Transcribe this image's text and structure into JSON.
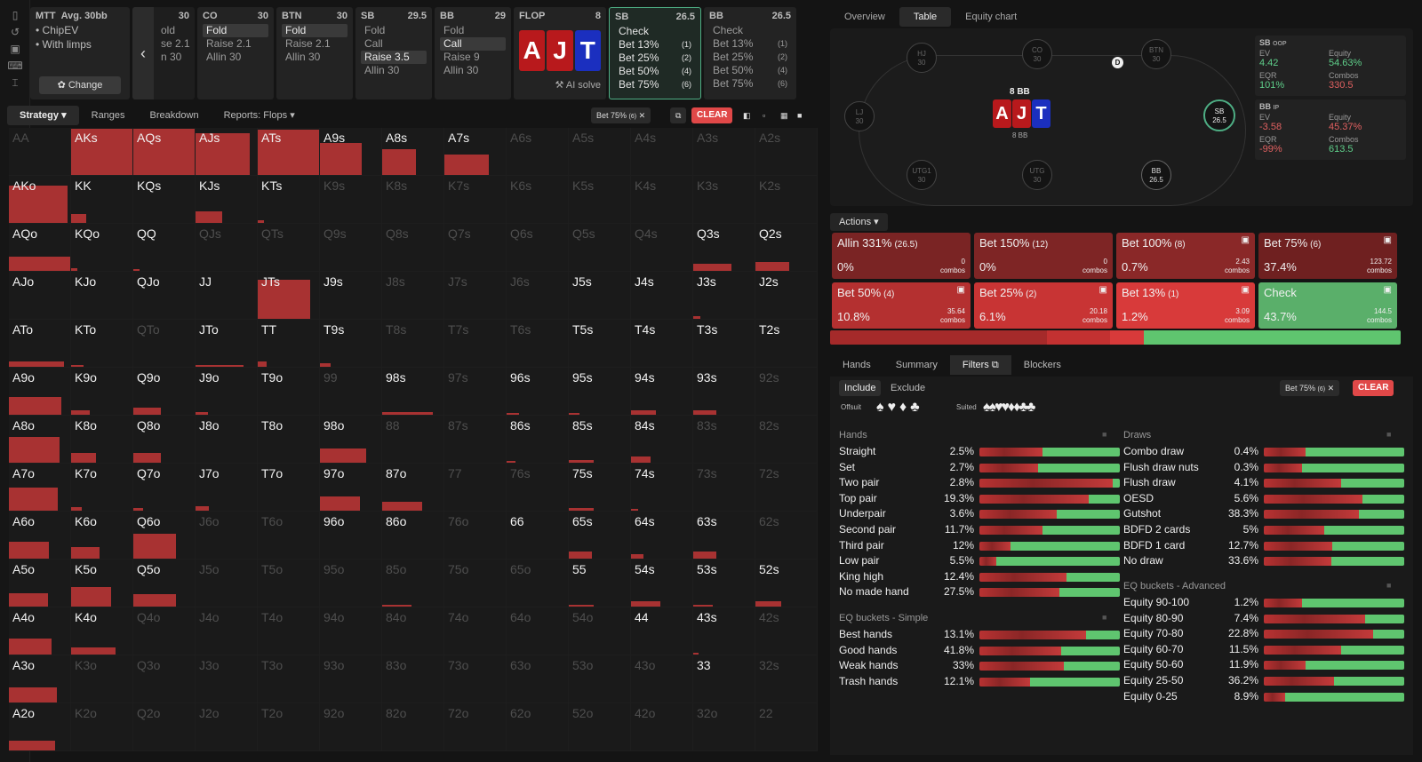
{
  "sidebar": [
    "bookmark-icon",
    "history-icon",
    "save-icon",
    "game-icon",
    "tree-icon"
  ],
  "mtt": {
    "title": "MTT",
    "avg": "Avg. 30bb",
    "opt1": "ChipEV",
    "opt2": "With limps",
    "change": "Change"
  },
  "hist": {
    "hd": "30",
    "ops": [
      "old",
      "se 2.1",
      "n 30"
    ]
  },
  "nodes": [
    {
      "pos": "CO",
      "stack": "30",
      "ops": [
        "Fold",
        "Raise 2.1",
        "Allin 30"
      ],
      "sel": 0
    },
    {
      "pos": "BTN",
      "stack": "30",
      "ops": [
        "Fold",
        "Raise 2.1",
        "Allin 30"
      ],
      "sel": 0
    },
    {
      "pos": "SB",
      "stack": "29.5",
      "ops": [
        "Fold",
        "Call",
        "Raise 3.5",
        "Allin 30"
      ],
      "sel": 2
    },
    {
      "pos": "BB",
      "stack": "29",
      "ops": [
        "Fold",
        "Call",
        "Raise 9",
        "Allin 30"
      ],
      "sel": 1
    }
  ],
  "flop": {
    "label": "FLOP",
    "pot": "8",
    "cards": [
      "A",
      "J",
      "T"
    ],
    "ai": "AI solve"
  },
  "sbnode": {
    "pos": "SB",
    "stack": "26.5",
    "ops": [
      [
        "Check",
        ""
      ],
      [
        "Bet 13%",
        "(1)"
      ],
      [
        "Bet 25%",
        "(2)"
      ],
      [
        "Bet 50%",
        "(4)"
      ],
      [
        "Bet 75%",
        "(6)"
      ]
    ]
  },
  "bbnode": {
    "pos": "BB",
    "stack": "26.5",
    "ops": [
      [
        "Check",
        ""
      ],
      [
        "Bet 13%",
        "(1)"
      ],
      [
        "Bet 25%",
        "(2)"
      ],
      [
        "Bet 50%",
        "(4)"
      ],
      [
        "Bet 75%",
        "(6)"
      ]
    ]
  },
  "toolbar": {
    "strategy": "Strategy",
    "ranges": "Ranges",
    "breakdown": "Breakdown",
    "reports": "Reports: Flops",
    "filter": "Bet 75%",
    "filter_n": "(6)",
    "clear": "CLEAR"
  },
  "grid": {
    "rows": [
      [
        "AA",
        "AKs",
        "AQs",
        "AJs",
        "ATs",
        "A9s",
        "A8s",
        "A7s",
        "A6s",
        "A5s",
        "A4s",
        "A3s",
        "A2s"
      ],
      [
        "AKo",
        "KK",
        "KQs",
        "KJs",
        "KTs",
        "K9s",
        "K8s",
        "K7s",
        "K6s",
        "K5s",
        "K4s",
        "K3s",
        "K2s"
      ],
      [
        "AQo",
        "KQo",
        "QQ",
        "QJs",
        "QTs",
        "Q9s",
        "Q8s",
        "Q7s",
        "Q6s",
        "Q5s",
        "Q4s",
        "Q3s",
        "Q2s"
      ],
      [
        "AJo",
        "KJo",
        "QJo",
        "JJ",
        "JTs",
        "J9s",
        "J8s",
        "J7s",
        "J6s",
        "J5s",
        "J4s",
        "J3s",
        "J2s"
      ],
      [
        "ATo",
        "KTo",
        "QTo",
        "JTo",
        "TT",
        "T9s",
        "T8s",
        "T7s",
        "T6s",
        "T5s",
        "T4s",
        "T3s",
        "T2s"
      ],
      [
        "A9o",
        "K9o",
        "Q9o",
        "J9o",
        "T9o",
        "99",
        "98s",
        "97s",
        "96s",
        "95s",
        "94s",
        "93s",
        "92s"
      ],
      [
        "A8o",
        "K8o",
        "Q8o",
        "J8o",
        "T8o",
        "98o",
        "88",
        "87s",
        "86s",
        "85s",
        "84s",
        "83s",
        "82s"
      ],
      [
        "A7o",
        "K7o",
        "Q7o",
        "J7o",
        "T7o",
        "97o",
        "87o",
        "77",
        "76s",
        "75s",
        "74s",
        "73s",
        "72s"
      ],
      [
        "A6o",
        "K6o",
        "Q6o",
        "J6o",
        "T6o",
        "96o",
        "86o",
        "76o",
        "66",
        "65s",
        "64s",
        "63s",
        "62s"
      ],
      [
        "A5o",
        "K5o",
        "Q5o",
        "J5o",
        "T5o",
        "95o",
        "85o",
        "75o",
        "65o",
        "55",
        "54s",
        "53s",
        "52s"
      ],
      [
        "A4o",
        "K4o",
        "Q4o",
        "J4o",
        "T4o",
        "94o",
        "84o",
        "74o",
        "64o",
        "54o",
        "44",
        "43s",
        "42s"
      ],
      [
        "A3o",
        "K3o",
        "Q3o",
        "J3o",
        "T3o",
        "93o",
        "83o",
        "73o",
        "63o",
        "53o",
        "43o",
        "33",
        "32s"
      ],
      [
        "A2o",
        "K2o",
        "Q2o",
        "J2o",
        "T2o",
        "92o",
        "82o",
        "72o",
        "62o",
        "52o",
        "42o",
        "32o",
        "22"
      ]
    ],
    "dim": [
      [
        1,
        0,
        0,
        0,
        0,
        0,
        0,
        0,
        1,
        1,
        1,
        1,
        1
      ],
      [
        0,
        0,
        0,
        0,
        0,
        1,
        1,
        1,
        1,
        1,
        1,
        1,
        1
      ],
      [
        0,
        0,
        0,
        1,
        1,
        1,
        1,
        1,
        1,
        1,
        1,
        0,
        0
      ],
      [
        0,
        0,
        0,
        0,
        0,
        0,
        1,
        1,
        1,
        0,
        0,
        0,
        0
      ],
      [
        0,
        0,
        1,
        0,
        0,
        0,
        1,
        1,
        1,
        0,
        0,
        0,
        0
      ],
      [
        0,
        0,
        0,
        0,
        0,
        1,
        0,
        1,
        0,
        0,
        0,
        0,
        1
      ],
      [
        0,
        0,
        0,
        0,
        0,
        0,
        1,
        1,
        0,
        0,
        0,
        1,
        1
      ],
      [
        0,
        0,
        0,
        0,
        0,
        0,
        0,
        1,
        1,
        0,
        0,
        1,
        1
      ],
      [
        0,
        0,
        0,
        1,
        1,
        0,
        0,
        1,
        0,
        0,
        0,
        0,
        1
      ],
      [
        0,
        0,
        0,
        1,
        1,
        1,
        1,
        1,
        1,
        0,
        0,
        0,
        0
      ],
      [
        0,
        0,
        1,
        1,
        1,
        1,
        1,
        1,
        1,
        1,
        0,
        0,
        1
      ],
      [
        0,
        1,
        1,
        1,
        1,
        1,
        1,
        1,
        1,
        1,
        1,
        0,
        1
      ],
      [
        0,
        1,
        1,
        1,
        1,
        1,
        1,
        1,
        1,
        1,
        1,
        1,
        1
      ]
    ],
    "freq": [
      [
        0,
        1.0,
        1.0,
        0.9,
        0.98,
        0.7,
        0.55,
        0.45,
        0,
        0,
        0,
        0,
        0
      ],
      [
        0.8,
        0.2,
        0,
        0.25,
        0.05,
        0,
        0,
        0,
        0,
        0,
        0,
        0,
        0
      ],
      [
        0.3,
        0.06,
        0.04,
        0,
        0,
        0,
        0,
        0,
        0,
        0,
        0,
        0.15,
        0.2
      ],
      [
        0,
        0,
        0,
        0,
        0.85,
        0,
        0,
        0,
        0,
        0,
        0,
        0.05,
        0
      ],
      [
        0.12,
        0.04,
        0,
        0.04,
        0.12,
        0.08,
        0,
        0,
        0,
        0,
        0,
        0,
        0
      ],
      [
        0.38,
        0.1,
        0.15,
        0.06,
        0,
        0,
        0.05,
        0,
        0.03,
        0.04,
        0.09,
        0.09,
        0
      ],
      [
        0.55,
        0.22,
        0.22,
        0,
        0,
        0.3,
        0,
        0,
        0.03,
        0.06,
        0.13,
        0,
        0
      ],
      [
        0.5,
        0.08,
        0.05,
        0.1,
        0,
        0.3,
        0.2,
        0,
        0,
        0.05,
        0.03,
        0,
        0
      ],
      [
        0.36,
        0.25,
        0.53,
        0,
        0,
        0,
        0,
        0,
        0,
        0.15,
        0.09,
        0.15,
        0
      ],
      [
        0.29,
        0.42,
        0.27,
        0,
        0,
        0,
        0.03,
        0,
        0,
        0.04,
        0.12,
        0.04,
        0.12
      ],
      [
        0.34,
        0.15,
        0,
        0,
        0,
        0,
        0,
        0,
        0,
        0,
        0,
        0.03,
        0
      ],
      [
        0.32,
        0,
        0,
        0,
        0,
        0,
        0,
        0,
        0,
        0,
        0,
        0,
        0
      ],
      [
        0.22,
        0,
        0,
        0,
        0,
        0,
        0,
        0,
        0,
        0,
        0,
        0,
        0
      ]
    ],
    "barw": [
      [
        1,
        1,
        1,
        0.88,
        1,
        0.68,
        0.55,
        0.72,
        1,
        1,
        1,
        1,
        1
      ],
      [
        0.96,
        0.25,
        1,
        0.44,
        0.1,
        1,
        1,
        1,
        1,
        1,
        1,
        1,
        1
      ],
      [
        1,
        0.1,
        0.1,
        1,
        1,
        1,
        1,
        1,
        1,
        1,
        1,
        0.62,
        0.55
      ],
      [
        1,
        1,
        1,
        1,
        0.85,
        1,
        1,
        1,
        1,
        1,
        1,
        0.12,
        1
      ],
      [
        0.9,
        0.2,
        1,
        0.78,
        0.14,
        0.18,
        1,
        1,
        1,
        1,
        1,
        1,
        1
      ],
      [
        0.85,
        0.3,
        0.45,
        0.2,
        1,
        1,
        0.83,
        1,
        0.2,
        0.18,
        0.4,
        0.38,
        1
      ],
      [
        0.83,
        0.4,
        0.45,
        1,
        1,
        0.75,
        1,
        1,
        0.14,
        0.4,
        0.32,
        1,
        1
      ],
      [
        0.8,
        0.18,
        0.16,
        0.22,
        1,
        0.65,
        0.65,
        1,
        1,
        0.4,
        0.12,
        1,
        1
      ],
      [
        0.65,
        0.46,
        0.7,
        1,
        1,
        1,
        1,
        1,
        1,
        0.38,
        0.2,
        0.37,
        1
      ],
      [
        0.64,
        0.65,
        0.7,
        1,
        1,
        1,
        0.48,
        1,
        1,
        0.4,
        0.48,
        0.32,
        0.42
      ],
      [
        0.7,
        0.72,
        1,
        1,
        1,
        1,
        1,
        1,
        1,
        1,
        1,
        0.08,
        1
      ],
      [
        0.78,
        1,
        1,
        1,
        1,
        1,
        1,
        1,
        1,
        1,
        1,
        1,
        1
      ],
      [
        0.75,
        1,
        1,
        1,
        1,
        1,
        1,
        1,
        1,
        1,
        1,
        1,
        1
      ]
    ]
  },
  "rtabs": [
    "Overview",
    "Table",
    "Equity chart"
  ],
  "table": {
    "pot": "8 BB",
    "board": [
      "A",
      "J",
      "T"
    ],
    "pot2": "8 BB",
    "dealer": "D",
    "seats": [
      {
        "n": "HJ",
        "s": "30"
      },
      {
        "n": "CO",
        "s": "30"
      },
      {
        "n": "BTN",
        "s": "30"
      },
      {
        "n": "LJ",
        "s": "30"
      },
      {
        "n": "SB",
        "s": "26.5"
      },
      {
        "n": "UTG1",
        "s": "30"
      },
      {
        "n": "UTG",
        "s": "30"
      },
      {
        "n": "BB",
        "s": "26.5"
      }
    ]
  },
  "stats": {
    "sb": {
      "h": "SB",
      "tag": "OOP",
      "ev_k": "EV",
      "ev": "4.42",
      "eq_k": "Equity",
      "eq": "54.63%",
      "eqr_k": "EQR",
      "eqr": "101%",
      "c_k": "Combos",
      "c": "330.5"
    },
    "bb": {
      "h": "BB",
      "tag": "IP",
      "ev_k": "EV",
      "ev": "-3.58",
      "eq_k": "Equity",
      "eq": "45.37%",
      "eqr_k": "EQR",
      "eqr": "-99%",
      "c_k": "Combos",
      "c": "613.5"
    }
  },
  "actions_label": "Actions",
  "actions": [
    {
      "name": "Allin 331%",
      "sz": "(26.5)",
      "pct": "0%",
      "c": "0",
      "color": "#7a2424"
    },
    {
      "name": "Bet 150%",
      "sz": "(12)",
      "pct": "0%",
      "c": "0",
      "color": "#7e2525"
    },
    {
      "name": "Bet 100%",
      "sz": "(8)",
      "pct": "0.7%",
      "c": "2.43",
      "color": "#8a2828"
    },
    {
      "name": "Bet 75%",
      "sz": "(6)",
      "pct": "37.4%",
      "c": "123.72",
      "color": "#6f2020"
    },
    {
      "name": "Bet 50%",
      "sz": "(4)",
      "pct": "10.8%",
      "c": "35.64",
      "color": "#b43030"
    },
    {
      "name": "Bet 25%",
      "sz": "(2)",
      "pct": "6.1%",
      "c": "20.18",
      "color": "#c83434"
    },
    {
      "name": "Bet 13%",
      "sz": "(1)",
      "pct": "1.2%",
      "c": "3.09",
      "color": "#d83a3a"
    },
    {
      "name": "Check",
      "sz": "",
      "pct": "43.7%",
      "c": "144.5",
      "color": "#5aaf6a"
    }
  ],
  "combos_word": "combos",
  "summary_bar": [
    {
      "w": 0.38,
      "c": "#a52a2a"
    },
    {
      "w": 0.11,
      "c": "#c33131"
    },
    {
      "w": 0.06,
      "c": "#d83a3a"
    },
    {
      "w": 0.45,
      "c": "#5fc56f"
    }
  ],
  "ftabs": [
    "Hands",
    "Summary",
    "Filters",
    "Blockers"
  ],
  "filt": {
    "include": "Include",
    "exclude": "Exclude",
    "chip": "Bet 75%",
    "chip_n": "(6)",
    "clear": "CLEAR",
    "offsuit": "Offsuit",
    "suited": "Suited"
  },
  "hands_title": "Hands",
  "hands": [
    {
      "n": "Straight",
      "p": "2.5%",
      "r": 0.45
    },
    {
      "n": "Set",
      "p": "2.7%",
      "r": 0.42
    },
    {
      "n": "Two pair",
      "p": "2.8%",
      "r": 0.95
    },
    {
      "n": "Top pair",
      "p": "19.3%",
      "r": 0.78
    },
    {
      "n": "Underpair",
      "p": "3.6%",
      "r": 0.55
    },
    {
      "n": "Second pair",
      "p": "11.7%",
      "r": 0.45
    },
    {
      "n": "Third pair",
      "p": "12%",
      "r": 0.22
    },
    {
      "n": "Low pair",
      "p": "5.5%",
      "r": 0.12
    },
    {
      "n": "King high",
      "p": "12.4%",
      "r": 0.62
    },
    {
      "n": "No made hand",
      "p": "27.5%",
      "r": 0.57
    }
  ],
  "eqs_title": "EQ buckets - Simple",
  "eqs": [
    {
      "n": "Best hands",
      "p": "13.1%",
      "r": 0.76
    },
    {
      "n": "Good hands",
      "p": "41.8%",
      "r": 0.58
    },
    {
      "n": "Weak hands",
      "p": "33%",
      "r": 0.6
    },
    {
      "n": "Trash hands",
      "p": "12.1%",
      "r": 0.36
    }
  ],
  "draws_title": "Draws",
  "draws": [
    {
      "n": "Combo draw",
      "p": "0.4%",
      "r": 0.3
    },
    {
      "n": "Flush draw nuts",
      "p": "0.3%",
      "r": 0.27
    },
    {
      "n": "Flush draw",
      "p": "4.1%",
      "r": 0.55
    },
    {
      "n": "OESD",
      "p": "5.6%",
      "r": 0.7
    },
    {
      "n": "Gutshot",
      "p": "38.3%",
      "r": 0.68
    },
    {
      "n": "BDFD 2 cards",
      "p": "5%",
      "r": 0.43
    },
    {
      "n": "BDFD 1 card",
      "p": "12.7%",
      "r": 0.49
    },
    {
      "n": "No draw",
      "p": "33.6%",
      "r": 0.48
    }
  ],
  "eqa_title": "EQ buckets - Advanced",
  "eqa": [
    {
      "n": "Equity 90-100",
      "p": "1.2%",
      "r": 0.27
    },
    {
      "n": "Equity 80-90",
      "p": "7.4%",
      "r": 0.72
    },
    {
      "n": "Equity 70-80",
      "p": "22.8%",
      "r": 0.78
    },
    {
      "n": "Equity 60-70",
      "p": "11.5%",
      "r": 0.55
    },
    {
      "n": "Equity 50-60",
      "p": "11.9%",
      "r": 0.3
    },
    {
      "n": "Equity 25-50",
      "p": "36.2%",
      "r": 0.5
    },
    {
      "n": "Equity 0-25",
      "p": "8.9%",
      "r": 0.15
    }
  ]
}
